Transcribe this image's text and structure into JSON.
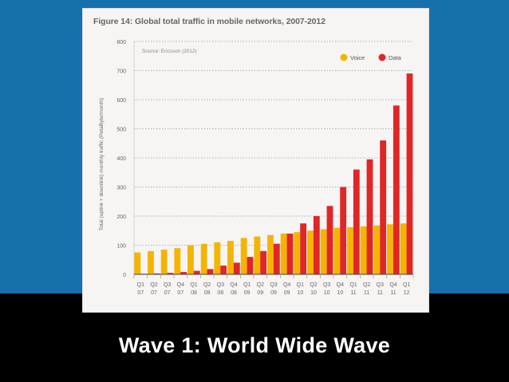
{
  "slide": {
    "caption": "Wave 1: World Wide Wave"
  },
  "chart_data": {
    "type": "bar",
    "title": "Figure 14: Global total traffic in mobile networks, 2007-2012",
    "source_note": "Source: Ericsson (2012)",
    "ylabel": "Total (uplink + downlink) monthly traffic (PetaByte/month)",
    "xlabel": "",
    "ylim": [
      0,
      800
    ],
    "yticks": [
      0,
      100,
      200,
      300,
      400,
      500,
      600,
      700,
      800
    ],
    "grid": true,
    "legend_position": "top-right",
    "categories_top": [
      "Q1",
      "Q2",
      "Q3",
      "Q4",
      "Q1",
      "Q2",
      "Q3",
      "Q4",
      "Q1",
      "Q2",
      "Q3",
      "Q4",
      "Q1",
      "Q2",
      "Q3",
      "Q4",
      "Q1",
      "Q2",
      "Q3",
      "Q4",
      "Q1"
    ],
    "categories_bottom": [
      "07",
      "07",
      "07",
      "07",
      "08",
      "08",
      "08",
      "08",
      "09",
      "09",
      "09",
      "09",
      "10",
      "10",
      "10",
      "10",
      "11",
      "11",
      "11",
      "11",
      "12"
    ],
    "series": [
      {
        "name": "Voice",
        "color": "#f5b400",
        "values": [
          75,
          80,
          85,
          90,
          100,
          105,
          110,
          115,
          125,
          130,
          135,
          140,
          145,
          150,
          155,
          160,
          162,
          165,
          168,
          172,
          175
        ]
      },
      {
        "name": "Data",
        "color": "#e02626",
        "values": [
          2,
          3,
          5,
          8,
          12,
          18,
          30,
          40,
          60,
          80,
          105,
          140,
          175,
          200,
          235,
          300,
          360,
          395,
          460,
          580,
          690
        ]
      }
    ]
  }
}
